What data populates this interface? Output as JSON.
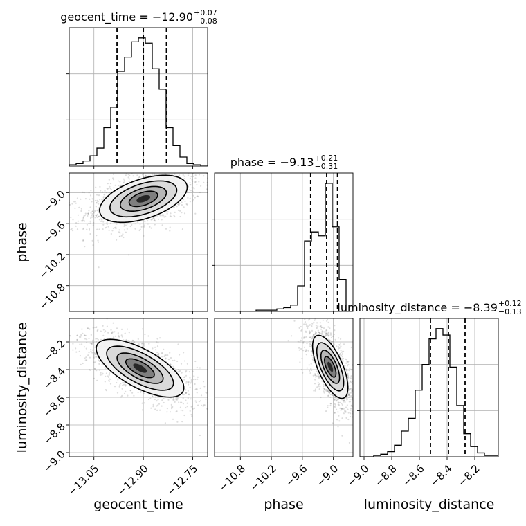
{
  "chart_data": {
    "type": "corner",
    "parameters": [
      "geocent_time",
      "phase",
      "luminosity_distance"
    ],
    "titles": [
      {
        "param": "geocent_time",
        "prefix": "geocent_time = ",
        "median": "−12.90",
        "plus": "+0.07",
        "minus": "−0.08"
      },
      {
        "param": "phase",
        "prefix": "phase = ",
        "median": "−9.13",
        "plus": "+0.21",
        "minus": "−0.31"
      },
      {
        "param": "luminosity_distance",
        "prefix": "luminosity_distance = ",
        "median": "−8.39",
        "plus": "+0.12",
        "minus": "−0.13"
      }
    ],
    "axes": {
      "geocent_time": {
        "range": [
          -13.125,
          -12.705
        ],
        "ticks": [
          -13.05,
          -12.9,
          -12.75
        ],
        "tick_labels": [
          "−13.05",
          "−12.90",
          "−12.75"
        ]
      },
      "phase": {
        "range": [
          -11.3,
          -8.62
        ],
        "ticks": [
          -10.8,
          -10.2,
          -9.6,
          -9.0
        ],
        "tick_labels": [
          "−10.8",
          "−10.2",
          "−9.6",
          "−9.0"
        ]
      },
      "luminosity_distance": {
        "range": [
          -9.03,
          -8.03
        ],
        "ticks": [
          -9.0,
          -8.8,
          -8.6,
          -8.4,
          -8.2
        ],
        "tick_labels": [
          "−9.0",
          "−8.8",
          "−8.6",
          "−8.4",
          "−8.2"
        ]
      }
    },
    "quantiles": {
      "geocent_time": [
        -12.98,
        -12.9,
        -12.83
      ],
      "phase": [
        -9.44,
        -9.13,
        -8.92
      ],
      "luminosity_distance": [
        -8.52,
        -8.39,
        -8.27
      ]
    },
    "hist1d": {
      "geocent_time": {
        "bins": 20,
        "heights": [
          0.01,
          0.02,
          0.04,
          0.08,
          0.14,
          0.3,
          0.46,
          0.74,
          0.85,
          0.97,
          1.0,
          0.96,
          0.76,
          0.6,
          0.3,
          0.16,
          0.07,
          0.02,
          0.01,
          0.0
        ]
      },
      "phase": {
        "bins": 20,
        "heights": [
          0.0,
          0.0,
          0.0,
          0.0,
          0.0,
          0.0,
          0.01,
          0.01,
          0.01,
          0.02,
          0.03,
          0.05,
          0.2,
          0.55,
          0.62,
          0.59,
          1.0,
          0.66,
          0.25,
          0.0
        ]
      },
      "luminosity_distance": {
        "bins": 20,
        "heights": [
          0.0,
          0.0,
          0.01,
          0.02,
          0.04,
          0.09,
          0.2,
          0.3,
          0.52,
          0.72,
          0.92,
          1.0,
          0.95,
          0.7,
          0.4,
          0.18,
          0.08,
          0.03,
          0.01,
          0.01
        ]
      }
    },
    "hist2d": {
      "geocent_time_vs_phase": {
        "center": [
          -12.9,
          -9.12
        ],
        "cov": [
          [
            0.0049,
            0.0082
          ],
          [
            0.0082,
            0.0576
          ]
        ]
      },
      "geocent_time_vs_luminosity_distance": {
        "center": [
          -12.91,
          -8.39
        ],
        "cov": [
          [
            0.0049,
            -0.0052
          ],
          [
            -0.0052,
            0.0121
          ]
        ]
      },
      "phase_vs_luminosity_distance": {
        "center": [
          -9.06,
          -8.38
        ],
        "cov": [
          [
            0.0324,
            -0.0142
          ],
          [
            -0.0142,
            0.0144
          ]
        ]
      }
    },
    "grid": true
  }
}
